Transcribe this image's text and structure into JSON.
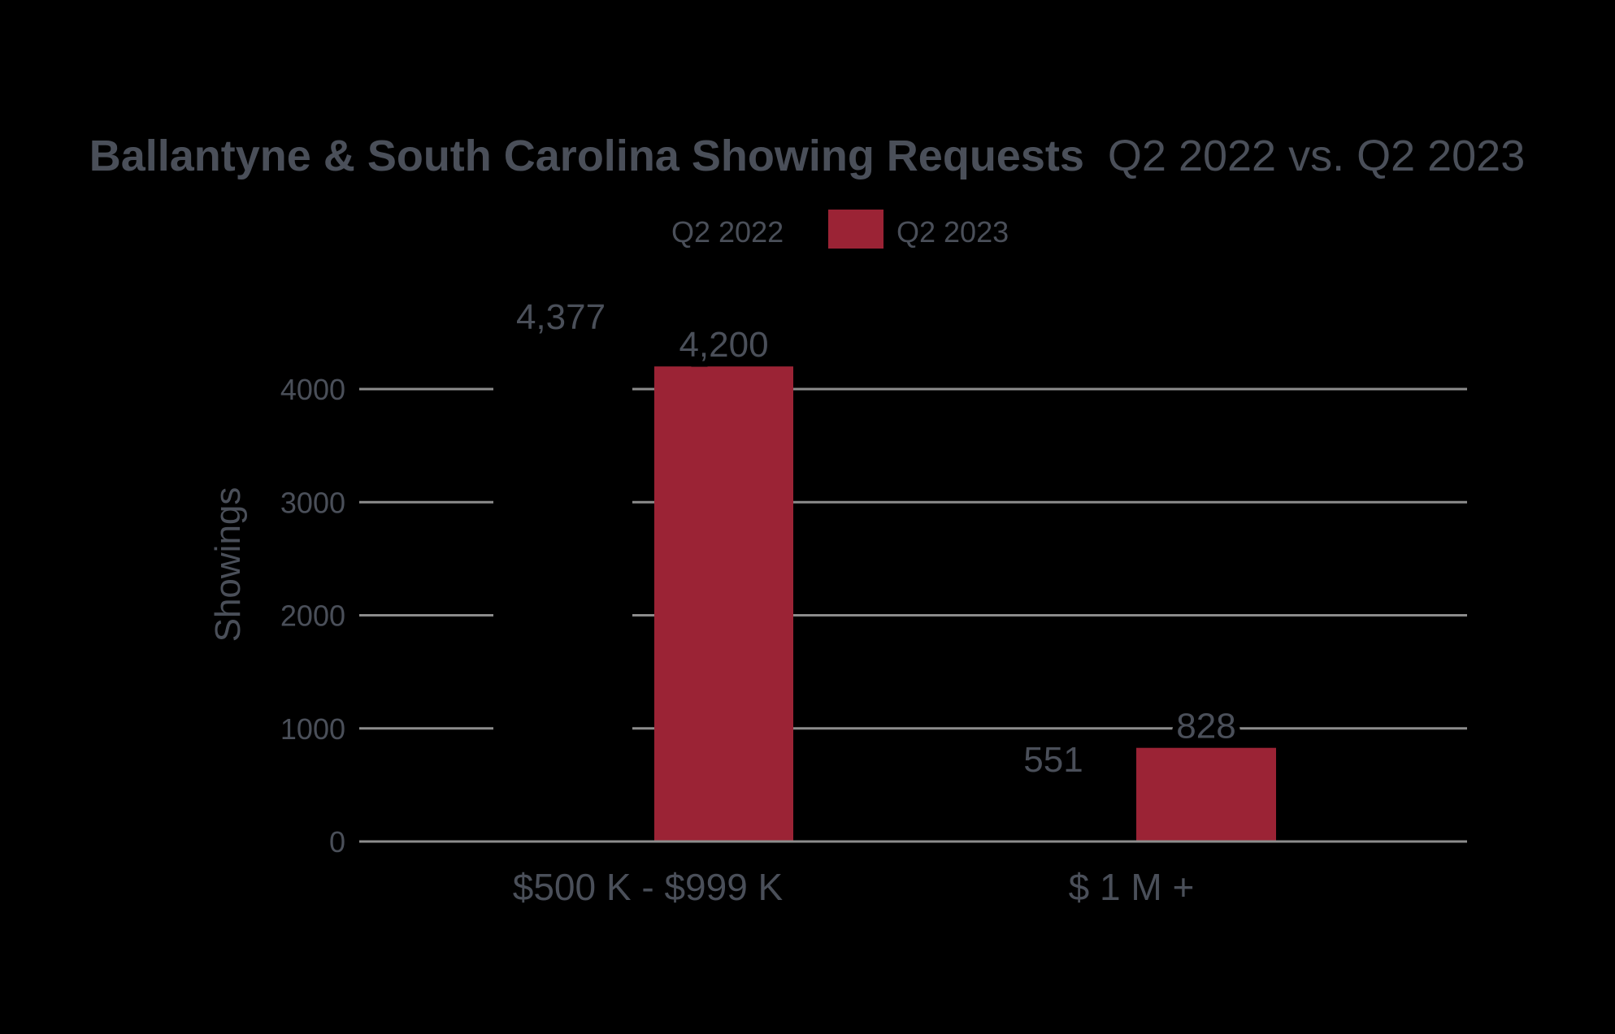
{
  "chart_data": {
    "type": "bar",
    "title_bold": "Ballantyne & South Carolina Showing Requests",
    "title_regular": "Q2 2022 vs. Q2 2023",
    "xlabel": "",
    "ylabel": "Showings",
    "ylim": [
      0,
      4377
    ],
    "yticks": [
      "0",
      "1000",
      "2000",
      "3000",
      "4000"
    ],
    "ytick_values": [
      0,
      1000,
      2000,
      3000,
      4000
    ],
    "grid": true,
    "legend_position": "top-center",
    "categories": [
      "$500 K - $999 K",
      "$ 1 M +"
    ],
    "series": [
      {
        "name": "Q2 2022",
        "color": "#000000",
        "values": [
          4377,
          551
        ],
        "labels": [
          "4,377",
          "551"
        ]
      },
      {
        "name": "Q2 2023",
        "color": "#9B2335",
        "values": [
          4200,
          828
        ],
        "labels": [
          "4,200",
          "828"
        ]
      }
    ],
    "colors": {
      "background": "#000000",
      "text": "#4a4f59",
      "grid": "#8c8c8c"
    }
  }
}
